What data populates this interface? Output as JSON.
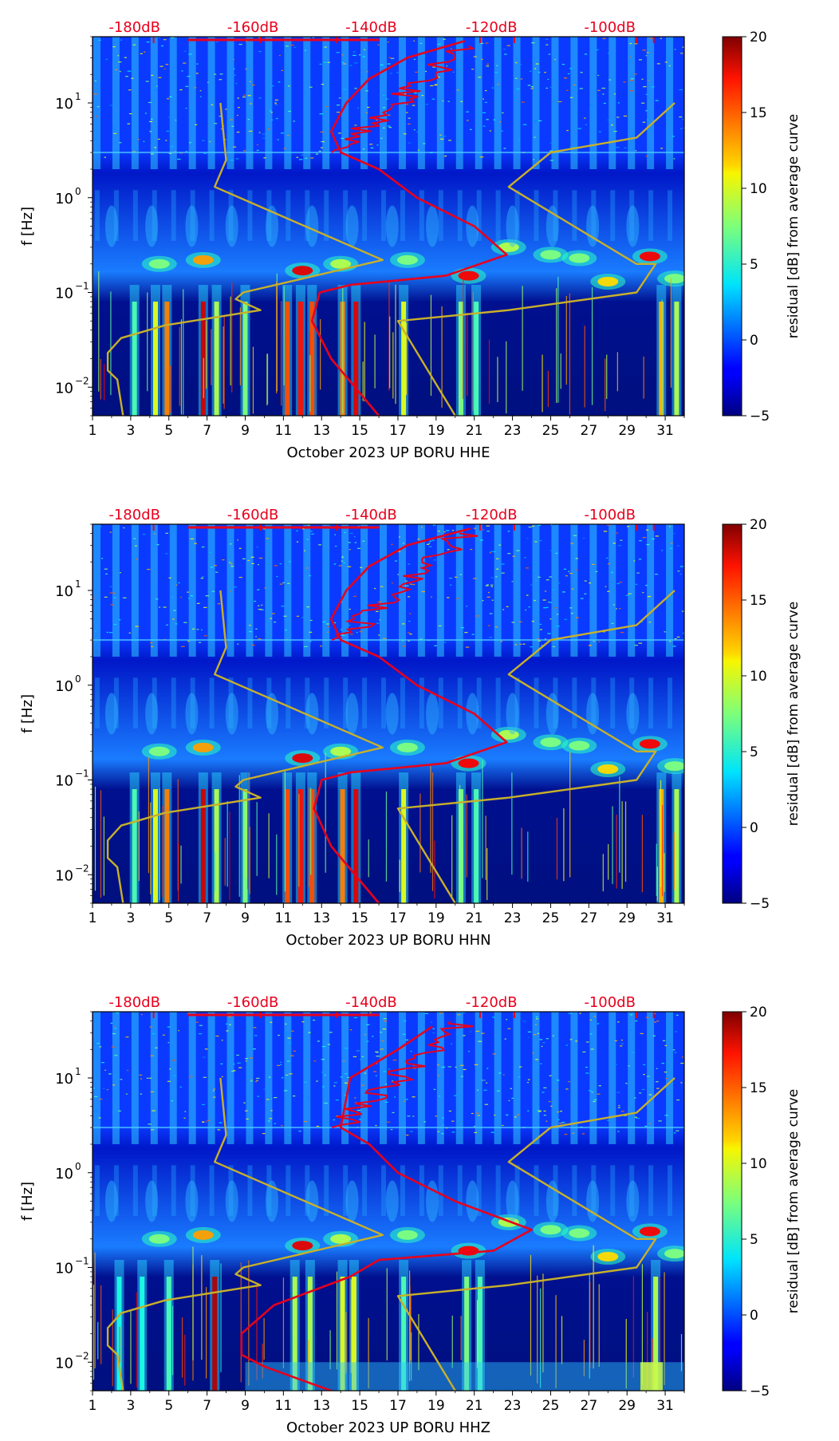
{
  "colorbar": {
    "label": "residual [dB] from average curve",
    "ticks": [
      "20",
      "15",
      "10",
      "5",
      "0",
      "−5"
    ],
    "range": [
      -5,
      20
    ],
    "colormap": "jet"
  },
  "y_axis": {
    "label": "f [Hz]",
    "ticks": [
      "10",
      "10",
      "10",
      "10"
    ],
    "tick_exponents": [
      "1",
      "0",
      "−1",
      "−2"
    ]
  },
  "x_axis": {
    "ticks": [
      "1",
      "3",
      "5",
      "7",
      "9",
      "11",
      "13",
      "15",
      "17",
      "19",
      "21",
      "23",
      "25",
      "27",
      "29",
      "31"
    ]
  },
  "db_scale": {
    "color": "#e8001c",
    "labels": [
      "-180dB",
      "-160dB",
      "-140dB",
      "-120dB",
      "-100dB"
    ]
  },
  "colors": {
    "noise_model": "#c8b02a",
    "psd_curve": "#e8001c"
  },
  "chart_data": [
    {
      "type": "heatmap",
      "title": "",
      "xlabel": "October 2023 UP BORU  HHE",
      "ylabel": "f [Hz]",
      "xlim": [
        1,
        32
      ],
      "ylim": [
        0.005,
        50
      ],
      "yscale": "log",
      "series": [
        {
          "name": "noise-model-low",
          "x": [
            2.6,
            2.3,
            1.8,
            1.8,
            2.5,
            4.8,
            9.8,
            8.5,
            8.9,
            16.2,
            7.4,
            8.0,
            7.7
          ],
          "y": [
            0.005,
            0.012,
            0.015,
            0.023,
            0.033,
            0.045,
            0.065,
            0.085,
            0.1,
            0.22,
            1.3,
            2.5,
            10
          ]
        },
        {
          "name": "noise-model-high",
          "x": [
            20.0,
            17.0,
            22.8,
            29.5,
            30.5,
            29.5,
            22.8,
            25.0,
            29.5,
            31.5
          ],
          "y": [
            0.005,
            0.05,
            0.065,
            0.1,
            0.2,
            0.2,
            1.3,
            3.0,
            4.3,
            10
          ]
        },
        {
          "name": "psd-median",
          "x": [
            16.0,
            13.5,
            12.5,
            12.9,
            14.5,
            19.5,
            22.7,
            21.0,
            18.0,
            16.0,
            14.0,
            13.5,
            14.3,
            15.5,
            17.5,
            20.5
          ],
          "y": [
            0.005,
            0.02,
            0.05,
            0.1,
            0.12,
            0.15,
            0.25,
            0.5,
            1.0,
            2.0,
            3.0,
            5.0,
            10,
            18,
            30,
            45
          ]
        }
      ]
    },
    {
      "type": "heatmap",
      "title": "",
      "xlabel": "October 2023 UP BORU  HHN",
      "ylabel": "f [Hz]",
      "xlim": [
        1,
        32
      ],
      "ylim": [
        0.005,
        50
      ],
      "yscale": "log",
      "series": [
        {
          "name": "noise-model-low",
          "x": [
            2.6,
            2.3,
            1.8,
            1.8,
            2.5,
            4.8,
            9.8,
            8.5,
            8.9,
            16.2,
            7.4,
            8.0,
            7.7
          ],
          "y": [
            0.005,
            0.012,
            0.015,
            0.023,
            0.033,
            0.045,
            0.065,
            0.085,
            0.1,
            0.22,
            1.3,
            2.5,
            10
          ]
        },
        {
          "name": "noise-model-high",
          "x": [
            20.0,
            17.0,
            22.8,
            29.5,
            30.5,
            29.5,
            22.8,
            25.0,
            29.5,
            31.5
          ],
          "y": [
            0.005,
            0.05,
            0.065,
            0.1,
            0.2,
            0.2,
            1.3,
            3.0,
            4.3,
            10
          ]
        },
        {
          "name": "psd-median",
          "x": [
            16.0,
            13.5,
            12.6,
            13.0,
            14.5,
            19.5,
            22.7,
            21.0,
            18.0,
            16.0,
            14.0,
            13.5,
            14.3,
            15.5,
            17.5,
            20.8
          ],
          "y": [
            0.005,
            0.02,
            0.05,
            0.1,
            0.12,
            0.15,
            0.25,
            0.5,
            1.0,
            2.0,
            3.0,
            5.0,
            10,
            18,
            30,
            45
          ]
        }
      ]
    },
    {
      "type": "heatmap",
      "title": "",
      "xlabel": "October 2023 UP BORU  HHZ",
      "ylabel": "f [Hz]",
      "xlim": [
        1,
        32
      ],
      "ylim": [
        0.005,
        50
      ],
      "yscale": "log",
      "series": [
        {
          "name": "noise-model-low",
          "x": [
            2.6,
            2.3,
            1.8,
            1.8,
            2.5,
            4.8,
            9.8,
            8.5,
            8.9,
            16.2,
            7.4,
            8.0,
            7.7
          ],
          "y": [
            0.005,
            0.012,
            0.015,
            0.023,
            0.033,
            0.045,
            0.065,
            0.085,
            0.1,
            0.22,
            1.3,
            2.5,
            10
          ]
        },
        {
          "name": "noise-model-high",
          "x": [
            20.0,
            17.0,
            22.8,
            29.5,
            30.5,
            29.5,
            22.8,
            25.0,
            29.5,
            31.5
          ],
          "y": [
            0.005,
            0.05,
            0.065,
            0.1,
            0.2,
            0.2,
            1.3,
            3.0,
            4.3,
            10
          ]
        },
        {
          "name": "psd-median",
          "x": [
            13.5,
            10.0,
            8.8,
            8.8,
            10.5,
            14.5,
            16.0,
            22.0,
            24.0,
            20.0,
            17.0,
            15.5,
            14.0,
            14.5,
            17.0,
            18.8
          ],
          "y": [
            0.005,
            0.009,
            0.012,
            0.02,
            0.04,
            0.08,
            0.12,
            0.15,
            0.25,
            0.5,
            1.0,
            2.0,
            3.0,
            10,
            20,
            35
          ]
        }
      ]
    }
  ]
}
